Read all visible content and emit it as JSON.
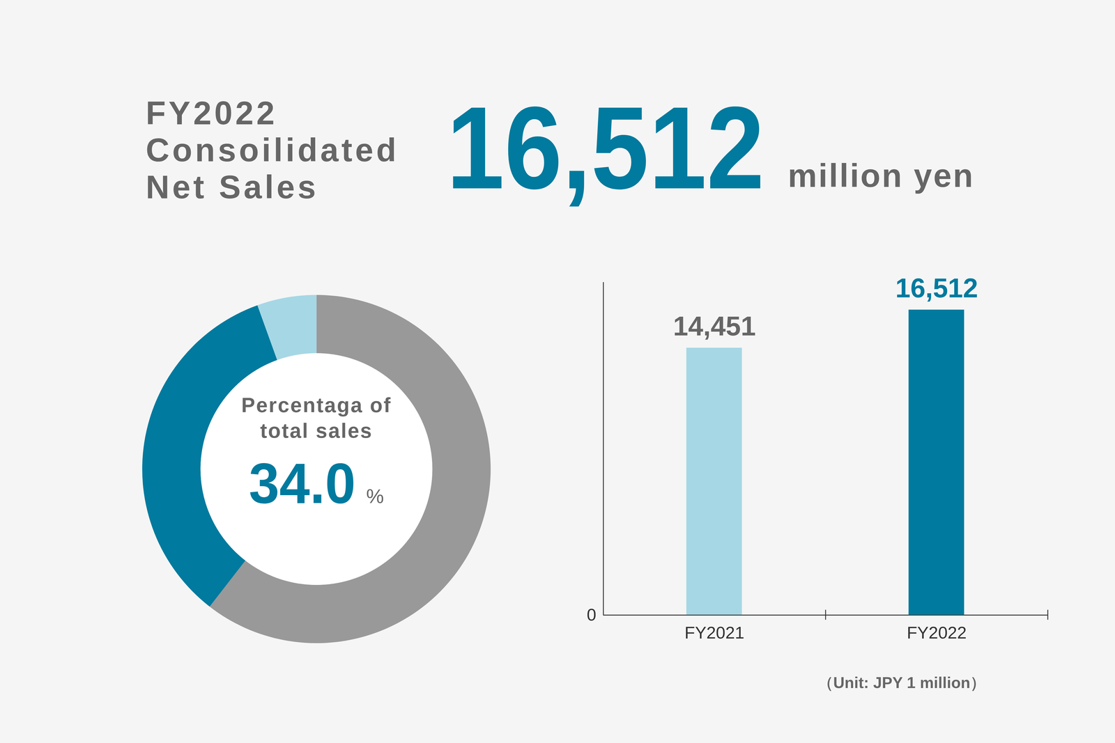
{
  "title_lines": [
    "FY2022",
    "Consoilidated",
    "Net Sales"
  ],
  "headline_value": "16,512",
  "headline_unit": "million yen",
  "note": "（Unit: JPY 1 million）",
  "chart_data": [
    {
      "type": "pie",
      "values": [
        60.5,
        34.0,
        5.5
      ],
      "colors": [
        "#999999",
        "#007a9e",
        "#a6d7e5"
      ],
      "center_text": [
        "Percentaga of",
        "total sales"
      ],
      "center_value": "34.0",
      "center_unit": "%"
    },
    {
      "type": "bar",
      "categories": [
        "FY2021",
        "FY2022"
      ],
      "values": [
        14451,
        16512
      ],
      "value_labels": [
        "14,451",
        "16,512"
      ],
      "colors": [
        "#a6d7e5",
        "#007a9e"
      ],
      "data_labels": true,
      "ylim": [
        0,
        18000
      ],
      "yticks": [
        0
      ],
      "grid": false
    }
  ]
}
